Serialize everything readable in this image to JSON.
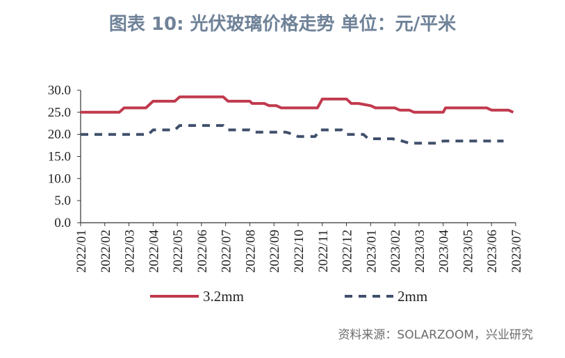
{
  "chart_data": {
    "type": "line",
    "title": "图表 10: 光伏玻璃价格走势  单位：元/平米",
    "source": "资料来源：SOLARZOOM，兴业研究",
    "ylim": [
      0,
      30
    ],
    "yticks": [
      "0.0",
      "5.0",
      "10.0",
      "15.0",
      "20.0",
      "25.0",
      "30.0"
    ],
    "categories": [
      "2022/01",
      "2022/02",
      "2022/03",
      "2022/04",
      "2022/05",
      "2022/06",
      "2022/07",
      "2022/08",
      "2022/09",
      "2022/10",
      "2022/11",
      "2022/12",
      "2023/01",
      "2023/02",
      "2023/03",
      "2023/04",
      "2023/05",
      "2023/06",
      "2023/07"
    ],
    "legend_position": "bottom",
    "series": [
      {
        "name": "3.2mm",
        "color": "#c0394d",
        "dash": "solid",
        "points": [
          [
            0,
            25
          ],
          [
            1,
            25
          ],
          [
            1.6,
            25
          ],
          [
            1.8,
            26
          ],
          [
            2,
            26
          ],
          [
            2.7,
            26
          ],
          [
            3,
            27.5
          ],
          [
            3.9,
            27.5
          ],
          [
            4.1,
            28.5
          ],
          [
            5,
            28.5
          ],
          [
            5.9,
            28.5
          ],
          [
            6.1,
            27.5
          ],
          [
            7,
            27.5
          ],
          [
            7.1,
            27
          ],
          [
            7.6,
            27
          ],
          [
            7.8,
            26.5
          ],
          [
            8.1,
            26.5
          ],
          [
            8.3,
            26
          ],
          [
            9,
            26
          ],
          [
            9.8,
            26
          ],
          [
            10,
            28
          ],
          [
            11,
            28
          ],
          [
            11.2,
            27
          ],
          [
            11.5,
            27
          ],
          [
            12,
            26.5
          ],
          [
            12.2,
            26
          ],
          [
            13,
            26
          ],
          [
            13.2,
            25.5
          ],
          [
            13.6,
            25.5
          ],
          [
            13.8,
            25
          ],
          [
            15,
            25
          ],
          [
            15.1,
            26
          ],
          [
            16,
            26
          ],
          [
            16.8,
            26
          ],
          [
            17,
            25.5
          ],
          [
            17.7,
            25.5
          ],
          [
            17.9,
            25
          ]
        ]
      },
      {
        "name": "2mm",
        "color": "#3f4f6b",
        "dash": "dashed",
        "points": [
          [
            0,
            20
          ],
          [
            1,
            20
          ],
          [
            2,
            20
          ],
          [
            2.8,
            20
          ],
          [
            3,
            21
          ],
          [
            3.9,
            21
          ],
          [
            4.1,
            22
          ],
          [
            5,
            22
          ],
          [
            5.9,
            22
          ],
          [
            6.1,
            21
          ],
          [
            7,
            21
          ],
          [
            7.2,
            20.5
          ],
          [
            8,
            20.5
          ],
          [
            8.5,
            20.5
          ],
          [
            8.8,
            20
          ],
          [
            9,
            19.5
          ],
          [
            9.7,
            19.5
          ],
          [
            9.9,
            21
          ],
          [
            10.8,
            21
          ],
          [
            11,
            20
          ],
          [
            11.7,
            20
          ],
          [
            11.9,
            19
          ],
          [
            12.9,
            19
          ],
          [
            13.3,
            18.5
          ],
          [
            13.6,
            18
          ],
          [
            14,
            18
          ],
          [
            14.8,
            18
          ],
          [
            15,
            18.5
          ],
          [
            16,
            18.5
          ],
          [
            17,
            18.5
          ],
          [
            17.5,
            18.5
          ]
        ]
      }
    ]
  }
}
